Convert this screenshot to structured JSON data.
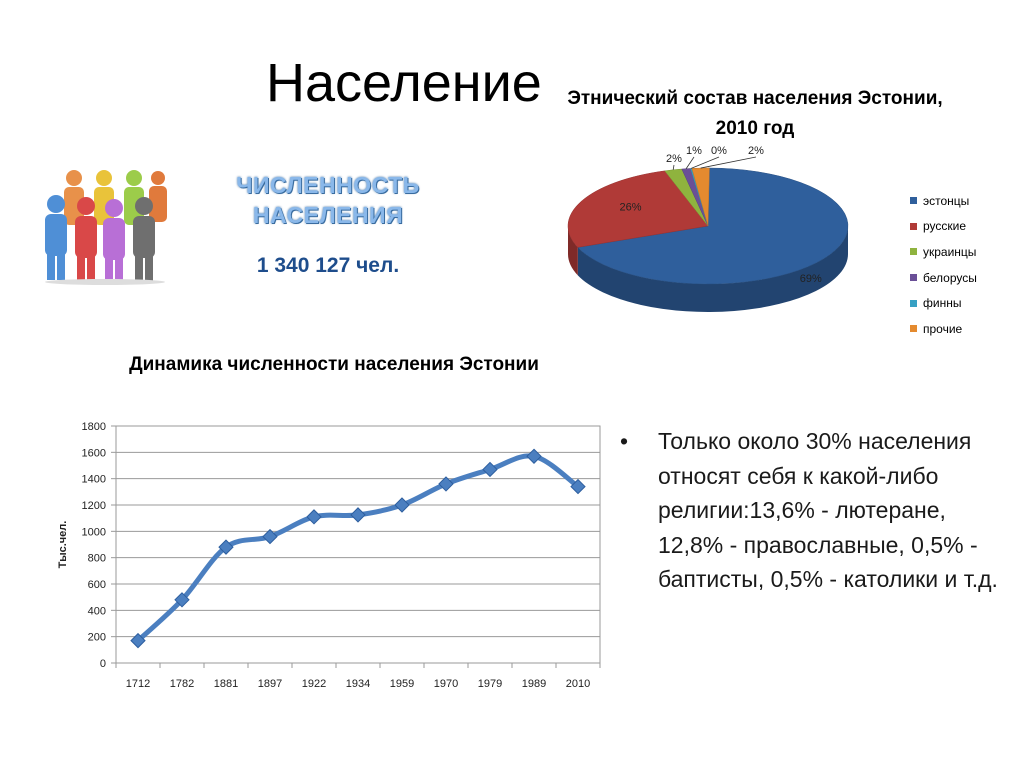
{
  "slide": {
    "title": "Население",
    "population_label": "ЧИСЛЕННОСТЬ НАСЕЛЕНИЯ",
    "population_value": "1 340 127 чел.",
    "bullet": "Только около 30% населения относят себя к какой-либо религии:13,6% - лютеране, 12,8% - православные, 0,5% - баптисты, 0,5% - католики и т.д."
  },
  "chart_data": [
    {
      "type": "pie",
      "title": "Этнический состав населения Эстонии, 2010 год",
      "categories": [
        "эстонцы",
        "русские",
        "украинцы",
        "белорусы",
        "финны",
        "прочие"
      ],
      "values": [
        69,
        26,
        2,
        1,
        0,
        2
      ],
      "data_labels": [
        "69%",
        "26%",
        "2%",
        "1%",
        "0%",
        "2%"
      ],
      "colors": [
        "#2f5f9c",
        "#b03a37",
        "#8fb33e",
        "#6a4f97",
        "#37a0c3",
        "#e48a2f"
      ],
      "legend_position": "right"
    },
    {
      "type": "line",
      "title": "Динамика численности населения Эстонии",
      "xlabel": "",
      "ylabel": "Тыс.чел.",
      "categories": [
        "1712",
        "1782",
        "1881",
        "1897",
        "1922",
        "1934",
        "1959",
        "1970",
        "1979",
        "1989",
        "2010"
      ],
      "values": [
        170,
        480,
        880,
        960,
        1110,
        1125,
        1200,
        1360,
        1470,
        1570,
        1340
      ],
      "ylim": [
        0,
        1800
      ],
      "yticks": [
        0,
        200,
        400,
        600,
        800,
        1000,
        1200,
        1400,
        1600,
        1800
      ],
      "grid": true,
      "line_color": "#4b7fc0",
      "marker_color": "#4b7fc0"
    }
  ]
}
